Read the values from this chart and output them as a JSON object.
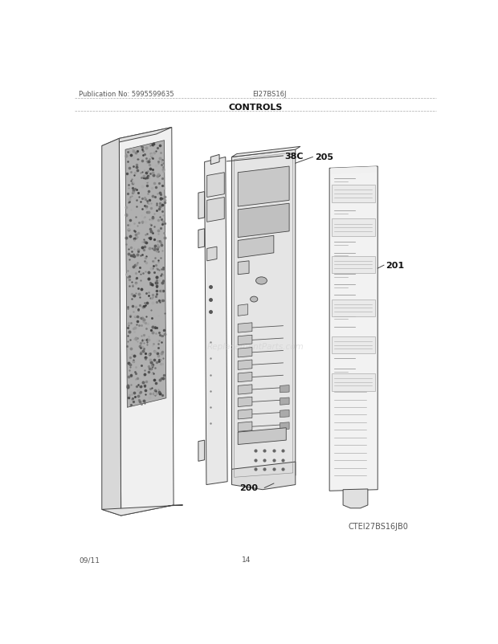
{
  "title": "CONTROLS",
  "pub_no": "Publication No: 5995599635",
  "model": "EI27BS16J",
  "diagram_id": "CTEI27BS16JB0",
  "date": "09/11",
  "page": "14",
  "bg_color": "#ffffff",
  "line_color": "#444444",
  "lw": 0.7
}
